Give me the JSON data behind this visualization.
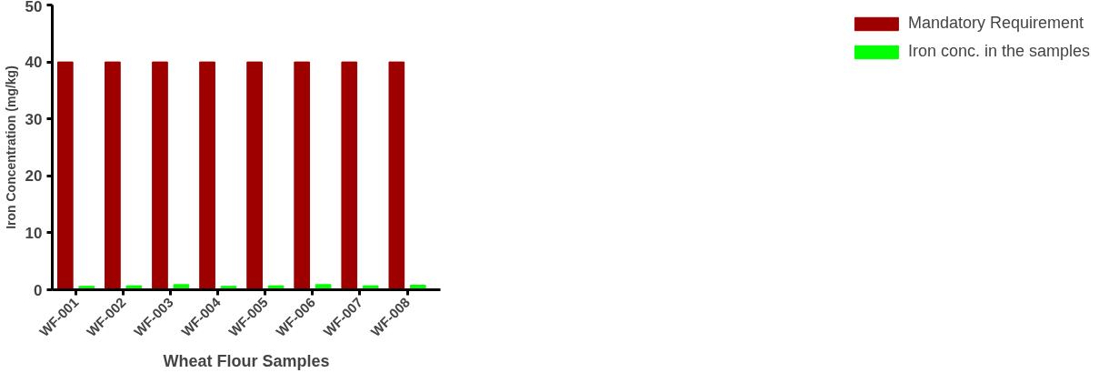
{
  "chart_data": {
    "type": "bar",
    "xlabel": "Wheat Flour Samples",
    "ylabel": "Iron Concentration (mg/kg)",
    "categories": [
      "WF-001",
      "WF-002",
      "WF-003",
      "WF-004",
      "WF-005",
      "WF-006",
      "WF-007",
      "WF-008"
    ],
    "series": [
      {
        "name": "Mandatory Requirement",
        "color": "#9e0000",
        "values": [
          40,
          40,
          40,
          40,
          40,
          40,
          40,
          40
        ]
      },
      {
        "name": "Iron conc. in the samples",
        "color": "#00ff00",
        "values": [
          0.6,
          0.7,
          0.9,
          0.6,
          0.7,
          0.9,
          0.7,
          0.8
        ]
      }
    ],
    "ylim": [
      0,
      50
    ],
    "yticks": [
      0,
      10,
      20,
      30,
      40,
      50
    ],
    "grid": false,
    "legend": "top right"
  }
}
